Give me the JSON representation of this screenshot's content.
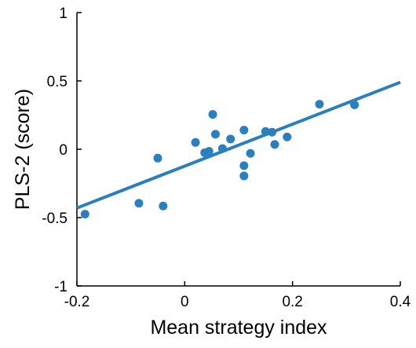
{
  "chart_data": {
    "type": "scatter",
    "xlabel": "Mean strategy index",
    "ylabel": "PLS-2 (score)",
    "xlim": [
      -0.2,
      0.4
    ],
    "ylim": [
      -1,
      1
    ],
    "x_ticks": [
      -0.2,
      0,
      0.2,
      0.4
    ],
    "x_tick_labels": [
      "-0.2",
      "0",
      "0.2",
      "0.4"
    ],
    "y_ticks": [
      -1,
      -0.5,
      0,
      0.5,
      1
    ],
    "y_tick_labels": [
      "-1",
      "-0.5",
      "0",
      "0.5",
      "1"
    ],
    "grid": false,
    "legend": "none",
    "colors": {
      "points": "#2a7fbd",
      "fit_line": "#2a7fbd",
      "axes": "#000000"
    },
    "points": [
      {
        "x": -0.185,
        "y": -0.475
      },
      {
        "x": -0.085,
        "y": -0.395
      },
      {
        "x": -0.05,
        "y": -0.065
      },
      {
        "x": -0.04,
        "y": -0.415
      },
      {
        "x": 0.02,
        "y": 0.05
      },
      {
        "x": 0.037,
        "y": -0.025
      },
      {
        "x": 0.045,
        "y": -0.015
      },
      {
        "x": 0.052,
        "y": 0.255
      },
      {
        "x": 0.057,
        "y": 0.11
      },
      {
        "x": 0.07,
        "y": 0.005
      },
      {
        "x": 0.085,
        "y": 0.075
      },
      {
        "x": 0.11,
        "y": 0.14
      },
      {
        "x": 0.11,
        "y": -0.12
      },
      {
        "x": 0.11,
        "y": -0.195
      },
      {
        "x": 0.122,
        "y": -0.03
      },
      {
        "x": 0.15,
        "y": 0.13
      },
      {
        "x": 0.162,
        "y": 0.125
      },
      {
        "x": 0.167,
        "y": 0.035
      },
      {
        "x": 0.19,
        "y": 0.09
      },
      {
        "x": 0.25,
        "y": 0.33
      },
      {
        "x": 0.315,
        "y": 0.325
      }
    ],
    "fit_line": {
      "x": [
        -0.2,
        0.4
      ],
      "y": [
        -0.43,
        0.49
      ]
    }
  }
}
